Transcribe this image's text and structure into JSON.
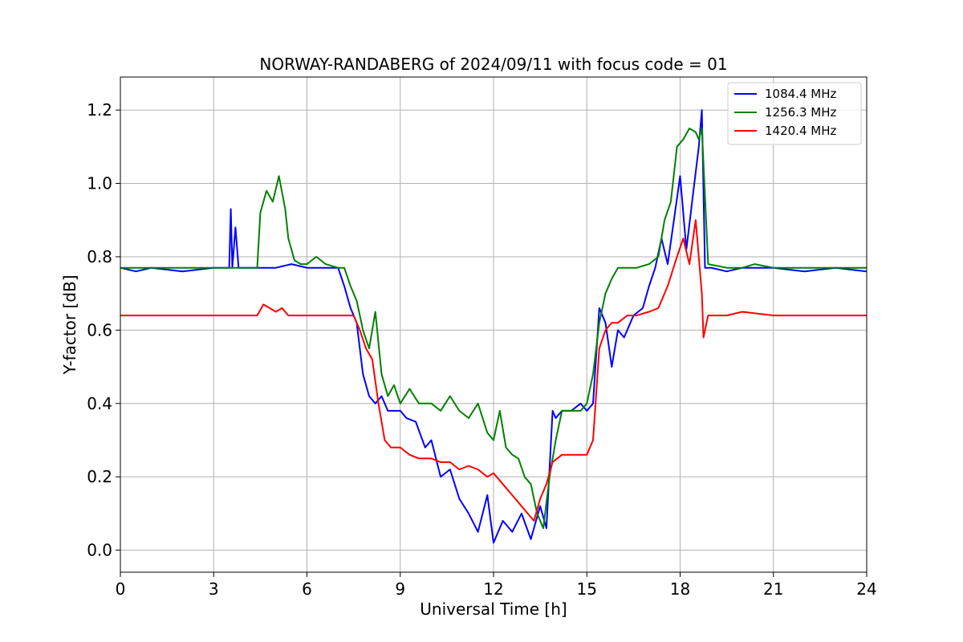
{
  "chart_data": {
    "type": "line",
    "title": "NORWAY-RANDABERG of 2024/09/11 with focus code = 01",
    "xlabel": "Universal Time [h]",
    "ylabel": "Y-factor [dB]",
    "xlim": [
      0,
      24
    ],
    "ylim": [
      -0.06,
      1.29
    ],
    "xticks": [
      "0",
      "3",
      "6",
      "9",
      "12",
      "15",
      "18",
      "21",
      "24"
    ],
    "yticks": [
      "0.0",
      "0.2",
      "0.4",
      "0.6",
      "0.8",
      "1.0",
      "1.2"
    ],
    "grid": true,
    "legend_position": "top-right",
    "series": [
      {
        "name": "1084.4 MHz",
        "color": "#0000ff",
        "x": [
          0,
          0.5,
          1,
          2,
          3,
          3.4,
          3.5,
          3.55,
          3.6,
          3.7,
          3.8,
          3.9,
          4.5,
          5,
          5.5,
          6,
          6.5,
          7,
          7.2,
          7.4,
          7.6,
          7.8,
          8,
          8.2,
          8.4,
          8.6,
          8.8,
          9,
          9.2,
          9.5,
          9.8,
          10,
          10.3,
          10.6,
          10.9,
          11.2,
          11.5,
          11.8,
          12,
          12.3,
          12.6,
          12.9,
          13.2,
          13.5,
          13.7,
          13.9,
          14,
          14.2,
          14.5,
          14.8,
          15,
          15.2,
          15.4,
          15.6,
          15.8,
          16,
          16.2,
          16.5,
          16.8,
          17,
          17.2,
          17.4,
          17.6,
          17.8,
          18,
          18.2,
          18.4,
          18.6,
          18.7,
          18.8,
          19,
          19.5,
          20,
          21,
          22,
          23,
          24
        ],
        "values": [
          0.77,
          0.76,
          0.77,
          0.76,
          0.77,
          0.77,
          0.77,
          0.93,
          0.77,
          0.88,
          0.77,
          0.77,
          0.77,
          0.77,
          0.78,
          0.77,
          0.77,
          0.77,
          0.72,
          0.66,
          0.62,
          0.48,
          0.42,
          0.4,
          0.42,
          0.38,
          0.38,
          0.38,
          0.36,
          0.35,
          0.28,
          0.3,
          0.2,
          0.22,
          0.14,
          0.1,
          0.05,
          0.15,
          0.02,
          0.08,
          0.05,
          0.1,
          0.03,
          0.12,
          0.06,
          0.38,
          0.36,
          0.38,
          0.38,
          0.4,
          0.38,
          0.4,
          0.66,
          0.62,
          0.5,
          0.6,
          0.58,
          0.64,
          0.66,
          0.72,
          0.77,
          0.85,
          0.78,
          0.9,
          1.02,
          0.82,
          0.96,
          1.1,
          1.2,
          0.77,
          0.77,
          0.76,
          0.77,
          0.77,
          0.76,
          0.77,
          0.76
        ]
      },
      {
        "name": "1256.3 MHz",
        "color": "#008000",
        "x": [
          0,
          1,
          2,
          3,
          4,
          4.4,
          4.5,
          4.7,
          4.9,
          5.1,
          5.3,
          5.4,
          5.6,
          5.8,
          6,
          6.3,
          6.6,
          7,
          7.2,
          7.4,
          7.6,
          7.8,
          8,
          8.2,
          8.4,
          8.6,
          8.8,
          9,
          9.3,
          9.6,
          10,
          10.3,
          10.6,
          10.9,
          11.2,
          11.5,
          11.8,
          12,
          12.2,
          12.4,
          12.6,
          12.8,
          13,
          13.2,
          13.4,
          13.6,
          13.8,
          14,
          14.2,
          14.5,
          14.8,
          15,
          15.2,
          15.4,
          15.6,
          15.8,
          16,
          16.3,
          16.6,
          17,
          17.3,
          17.5,
          17.7,
          17.9,
          18.1,
          18.3,
          18.5,
          18.6,
          18.7,
          18.9,
          19.5,
          20,
          20.4,
          21,
          22,
          23,
          24
        ],
        "values": [
          0.77,
          0.77,
          0.77,
          0.77,
          0.77,
          0.77,
          0.92,
          0.98,
          0.95,
          1.02,
          0.93,
          0.85,
          0.79,
          0.78,
          0.78,
          0.8,
          0.78,
          0.77,
          0.77,
          0.72,
          0.68,
          0.6,
          0.55,
          0.65,
          0.48,
          0.42,
          0.45,
          0.4,
          0.44,
          0.4,
          0.4,
          0.38,
          0.42,
          0.38,
          0.36,
          0.4,
          0.32,
          0.3,
          0.38,
          0.28,
          0.26,
          0.25,
          0.2,
          0.18,
          0.1,
          0.06,
          0.2,
          0.3,
          0.38,
          0.38,
          0.38,
          0.4,
          0.48,
          0.62,
          0.7,
          0.74,
          0.77,
          0.77,
          0.77,
          0.78,
          0.8,
          0.9,
          0.95,
          1.1,
          1.12,
          1.15,
          1.14,
          1.12,
          1.15,
          0.78,
          0.77,
          0.77,
          0.78,
          0.77,
          0.77,
          0.77,
          0.77
        ]
      },
      {
        "name": "1420.4 MHz",
        "color": "#ff0000",
        "x": [
          0,
          1,
          2,
          3,
          4,
          4.4,
          4.6,
          4.8,
          5,
          5.2,
          5.4,
          5.6,
          6,
          6.5,
          7,
          7.3,
          7.5,
          7.7,
          7.9,
          8.1,
          8.3,
          8.5,
          8.7,
          9,
          9.3,
          9.6,
          10,
          10.3,
          10.6,
          10.9,
          11.2,
          11.5,
          11.8,
          12,
          12.3,
          12.6,
          12.9,
          13.1,
          13.3,
          13.5,
          13.7,
          13.9,
          14.2,
          14.5,
          14.8,
          15,
          15.2,
          15.4,
          15.6,
          15.8,
          16,
          16.3,
          16.6,
          17,
          17.3,
          17.6,
          17.9,
          18.1,
          18.3,
          18.5,
          18.7,
          18.75,
          18.9,
          19.5,
          20,
          21,
          22,
          23,
          24
        ],
        "values": [
          0.64,
          0.64,
          0.64,
          0.64,
          0.64,
          0.64,
          0.67,
          0.66,
          0.65,
          0.66,
          0.64,
          0.64,
          0.64,
          0.64,
          0.64,
          0.64,
          0.64,
          0.6,
          0.55,
          0.52,
          0.4,
          0.3,
          0.28,
          0.28,
          0.26,
          0.25,
          0.25,
          0.24,
          0.24,
          0.22,
          0.23,
          0.22,
          0.2,
          0.21,
          0.18,
          0.15,
          0.12,
          0.1,
          0.08,
          0.14,
          0.18,
          0.24,
          0.26,
          0.26,
          0.26,
          0.26,
          0.3,
          0.55,
          0.6,
          0.62,
          0.62,
          0.64,
          0.64,
          0.65,
          0.66,
          0.72,
          0.8,
          0.85,
          0.78,
          0.9,
          0.7,
          0.58,
          0.64,
          0.64,
          0.65,
          0.64,
          0.64,
          0.64,
          0.64
        ]
      }
    ]
  }
}
